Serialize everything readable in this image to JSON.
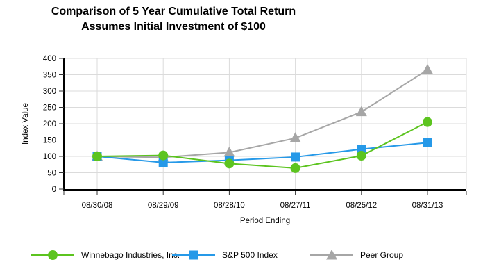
{
  "chart_data": {
    "type": "line",
    "title": "Comparison of 5 Year Cumulative Total Return",
    "subtitle": "Assumes Initial Investment of $100",
    "xlabel": "Period Ending",
    "ylabel": "Index Value",
    "ylim": [
      0,
      400
    ],
    "yticks": [
      0,
      50,
      100,
      150,
      200,
      250,
      300,
      350,
      400
    ],
    "grid": true,
    "legend_position": "bottom",
    "categories": [
      "08/30/08",
      "08/29/09",
      "08/28/10",
      "08/27/11",
      "08/25/12",
      "08/31/13"
    ],
    "series": [
      {
        "name": "Winnebago Industries, Inc.",
        "marker": "circle",
        "color": "#5CC41F",
        "values": [
          100,
          103,
          78,
          64,
          102,
          205
        ]
      },
      {
        "name": "S&P 500 Index",
        "marker": "square",
        "color": "#2699E8",
        "values": [
          100,
          81,
          88,
          98,
          122,
          142
        ]
      },
      {
        "name": "Peer Group",
        "marker": "triangle",
        "color": "#A6A6A6",
        "values": [
          100,
          97,
          112,
          156,
          236,
          365
        ]
      }
    ]
  },
  "colors": {
    "grid": "#DBDBDB",
    "axis": "#000000",
    "tick": "#333333"
  }
}
